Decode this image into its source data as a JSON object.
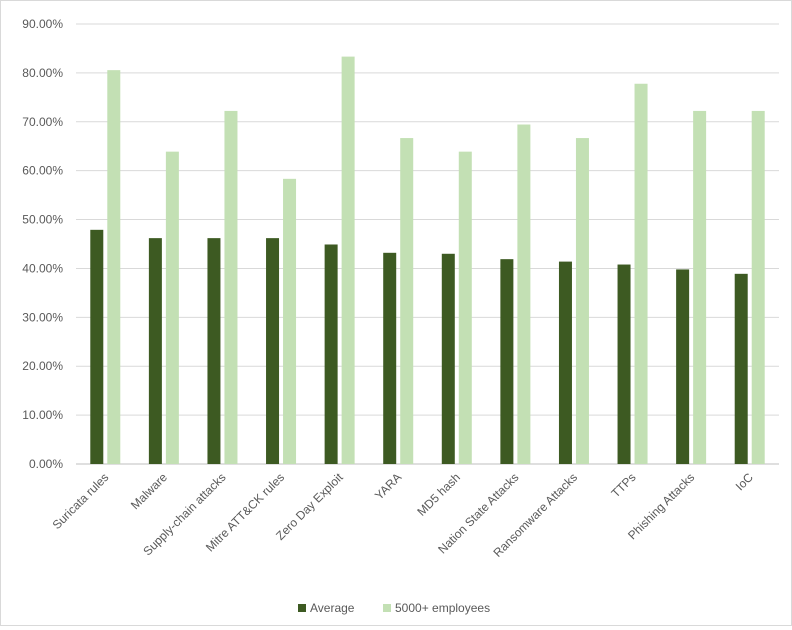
{
  "chart_data": {
    "type": "bar",
    "title": "",
    "xlabel": "",
    "ylabel": "",
    "ylim": [
      0,
      90
    ],
    "yticks": [
      "0.00%",
      "10.00%",
      "20.00%",
      "30.00%",
      "40.00%",
      "50.00%",
      "60.00%",
      "70.00%",
      "80.00%",
      "90.00%"
    ],
    "grid": true,
    "legend_position": "bottom",
    "categories": [
      "Suricata rules",
      "Malware",
      "Supply-chain attacks",
      "Mitre ATT&CK rules",
      "Zero Day Exploit",
      "YARA",
      "MD5 hash",
      "Nation State Attacks",
      "Ransomware Attacks",
      "TTPs",
      "Phishing Attacks",
      "IoC"
    ],
    "series": [
      {
        "name": "Average",
        "color": "#3d5a22",
        "values": [
          47.9,
          46.2,
          46.2,
          46.2,
          44.9,
          43.2,
          43.0,
          41.9,
          41.4,
          40.8,
          39.8,
          38.9
        ]
      },
      {
        "name": "5000+ employees",
        "color": "#c3e0b4",
        "values": [
          80.56,
          63.89,
          72.22,
          58.33,
          83.33,
          66.67,
          63.89,
          69.44,
          66.67,
          77.78,
          72.22,
          72.22
        ]
      }
    ]
  }
}
